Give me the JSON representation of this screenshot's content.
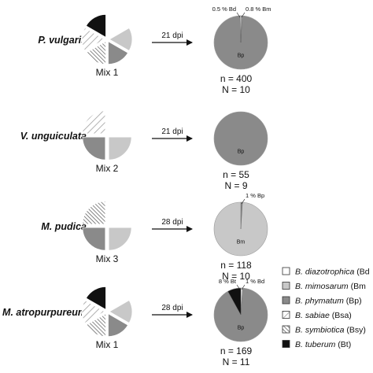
{
  "colors": {
    "B. diazotrophica (Bd)": "#ffffff",
    "B. mimosarum (Bm)": "#c8c8c8",
    "B. phymatum (Bp)": "#8a8a8a",
    "B. sabiae (Bsa)": "hatch-light",
    "B. symbiotica (Bsy)": "hatch-dense",
    "B. tuberum (Bt)": "#111111"
  },
  "legend": [
    {
      "key": "B. diazotrophica (Bd)",
      "species": "B. diazotrophica",
      "abbr": " (Bd"
    },
    {
      "key": "B. mimosarum (Bm)",
      "species": "B. mimosarum",
      "abbr": " (Bm"
    },
    {
      "key": "B. phymatum (Bp)",
      "species": "B. phymatum",
      "abbr": " (Bp)"
    },
    {
      "key": "B. sabiae (Bsa)",
      "species": "B. sabiae",
      "abbr": " (Bsa)"
    },
    {
      "key": "B. symbiotica (Bsy)",
      "species": "B. symbiotica",
      "abbr": " (Bsy)"
    },
    {
      "key": "B. tuberum (Bt)",
      "species": "B. tuberum",
      "abbr": " (Bt)"
    }
  ],
  "chart_data": [
    {
      "type": "pie",
      "host": "P. vulgaris",
      "inoculum": "Mix 1",
      "inoculum_slices": [
        {
          "strain": "B. tuberum (Bt)",
          "value": 16.67
        },
        {
          "strain": "B. diazotrophica (Bd)",
          "value": 16.67
        },
        {
          "strain": "B. mimosarum (Bm)",
          "value": 16.67
        },
        {
          "strain": "B. phymatum (Bp)",
          "value": 16.67
        },
        {
          "strain": "B. symbiotica (Bsy)",
          "value": 16.67
        },
        {
          "strain": "B. sabiae (Bsa)",
          "value": 16.66
        }
      ],
      "dpi": "21 dpi",
      "nodule_slices": [
        {
          "strain": "B. diazotrophica (Bd)",
          "value": 0.5,
          "label": "0.5 % Bd",
          "side": "left"
        },
        {
          "strain": "B. mimosarum (Bm)",
          "value": 0.8,
          "label": "0.8 % Bm",
          "side": "right"
        },
        {
          "strain": "B. phymatum (Bp)",
          "value": 98.7,
          "label": "Bp"
        }
      ],
      "n": "n = 400",
      "N": "N = 10"
    },
    {
      "type": "pie",
      "host": "V. unguiculata",
      "inoculum": "Mix 2",
      "inoculum_slices": [
        {
          "strain": "B. diazotrophica (Bd)",
          "value": 25
        },
        {
          "strain": "B. mimosarum (Bm)",
          "value": 25
        },
        {
          "strain": "B. phymatum (Bp)",
          "value": 25
        },
        {
          "strain": "B. sabiae (Bsa)",
          "value": 25
        }
      ],
      "dpi": "21 dpi",
      "nodule_slices": [
        {
          "strain": "B. phymatum (Bp)",
          "value": 100,
          "label": "Bp"
        }
      ],
      "n": "n = 55",
      "N": "N = 9"
    },
    {
      "type": "pie",
      "host": "M. pudica",
      "inoculum": "Mix 3",
      "inoculum_slices": [
        {
          "strain": "B. diazotrophica (Bd)",
          "value": 25
        },
        {
          "strain": "B. mimosarum (Bm)",
          "value": 25
        },
        {
          "strain": "B. phymatum (Bp)",
          "value": 25
        },
        {
          "strain": "B. symbiotica (Bsy)",
          "value": 25
        }
      ],
      "dpi": "28 dpi",
      "nodule_slices": [
        {
          "strain": "B. phymatum (Bp)",
          "value": 1,
          "label": "1 % Bp",
          "side": "right"
        },
        {
          "strain": "B. mimosarum (Bm)",
          "value": 99,
          "label": "Bm"
        }
      ],
      "n": "n = 118",
      "N": "N = 10"
    },
    {
      "type": "pie",
      "host": "M. atropurpureum",
      "inoculum": "Mix 1",
      "inoculum_slices": [
        {
          "strain": "B. tuberum (Bt)",
          "value": 16.67
        },
        {
          "strain": "B. diazotrophica (Bd)",
          "value": 16.67
        },
        {
          "strain": "B. mimosarum (Bm)",
          "value": 16.67
        },
        {
          "strain": "B. phymatum (Bp)",
          "value": 16.67
        },
        {
          "strain": "B. symbiotica (Bsy)",
          "value": 16.67
        },
        {
          "strain": "B. sabiae (Bsa)",
          "value": 16.66
        }
      ],
      "dpi": "28 dpi",
      "nodule_slices": [
        {
          "strain": "B. diazotrophica (Bd)",
          "value": 1,
          "label": "1 % Bd",
          "side": "right"
        },
        {
          "strain": "B. tuberum (Bt)",
          "value": 8,
          "label": "8 % Bt",
          "side": "left"
        },
        {
          "strain": "B. phymatum (Bp)",
          "value": 91,
          "label": "Bp"
        }
      ],
      "n": "n = 169",
      "N": "N = 11"
    }
  ]
}
